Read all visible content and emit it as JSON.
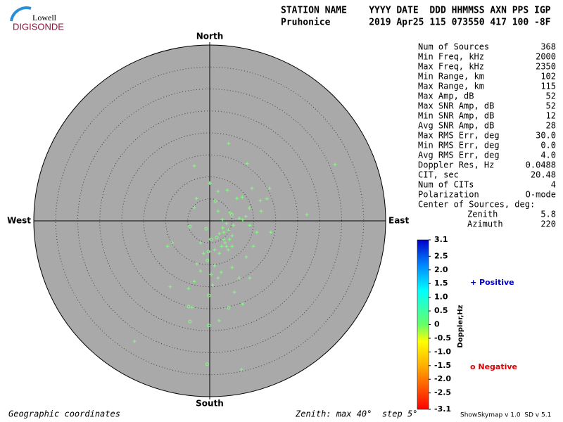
{
  "header": {
    "logo_top": "Lowell",
    "logo_bottom": "DIGISONDE",
    "columns_line": "STATION NAME    YYYY DATE  DDD HHMMSS AXN PPS IGP",
    "values_line": "Pruhonice       2019 Apr25 115 073550 417 100 -8F"
  },
  "stats": [
    [
      "Num of Sources",
      "368"
    ],
    [
      "Min Freq, kHz",
      "2000"
    ],
    [
      "Max Freq, kHz",
      "2350"
    ],
    [
      "Min Range, km",
      "102"
    ],
    [
      "Max Range, km",
      "115"
    ],
    [
      "Max Amp, dB",
      "52"
    ],
    [
      "Max SNR Amp, dB",
      "52"
    ],
    [
      "Min SNR Amp, dB",
      "12"
    ],
    [
      "Avg SNR Amp, dB",
      "28"
    ],
    [
      "Max RMS Err, deg",
      "30.0"
    ],
    [
      "Min RMS Err, deg",
      "0.0"
    ],
    [
      "Avg RMS Err, deg",
      "4.0"
    ],
    [
      "Doppler Res, Hz",
      "0.0488"
    ],
    [
      "CIT, sec",
      "20.48"
    ],
    [
      "Num of CITs",
      "4"
    ],
    [
      "Polarization",
      "O-mode"
    ]
  ],
  "center": {
    "title": "Center of Sources, deg:",
    "rows": [
      [
        "Zenith",
        "5.8"
      ],
      [
        "Azimuth",
        "220"
      ]
    ]
  },
  "chart_data": {
    "type": "polar-scatter",
    "direction_labels": {
      "north": "North",
      "south": "South",
      "west": "West",
      "east": "East"
    },
    "rlim": [
      0,
      40
    ],
    "rticks": [
      5,
      10,
      15,
      20,
      25,
      30,
      35,
      40
    ],
    "point_color": "#80ff80",
    "disk_color": "#a9a9a9",
    "series": [
      {
        "name": "+ Positive",
        "marker": "plus",
        "color": "#0000cc",
        "x": [
          4.3,
          28.5,
          -3.5,
          8.5,
          0,
          9.6,
          13.6,
          13.0,
          11.5,
          7.4,
          6.2,
          4.0,
          1.9,
          -3.0,
          -3.5,
          22.1,
          11.7,
          9.0,
          8.2,
          7.5,
          3.8,
          3.0,
          2.2,
          4.3,
          5.1,
          3.5,
          2.7,
          1.1,
          -2.1,
          -1.4,
          -2.9,
          -2.1,
          0.3,
          1.9,
          -3.5,
          -4.8,
          0.6,
          2.6,
          5.1,
          8.3,
          9.9,
          10.7,
          13.9,
          6.7,
          9.1,
          -9.0,
          -9.6,
          -8.5,
          -4.0,
          5.6,
          7.5,
          2.1,
          -17.1,
          7.2,
          3.2,
          3.8,
          2.9,
          4.6,
          5.4,
          3.2,
          6.7,
          9.1,
          1.9,
          1.1,
          4.5,
          5.1,
          2.2,
          4.2
        ],
        "y": [
          17.6,
          12.8,
          12.5,
          13.0,
          8.6,
          7.4,
          7.4,
          5.0,
          4.6,
          5.4,
          5.1,
          7.0,
          6.7,
          5.1,
          3.0,
          1.4,
          2.2,
          2.9,
          1.0,
          0.2,
          -0.6,
          -1.6,
          -2.9,
          -2.1,
          -3.4,
          -5.0,
          -5.8,
          -6.6,
          -5.0,
          -7.4,
          -9.8,
          -11.4,
          -12.2,
          -13.0,
          -13.8,
          -15.4,
          -14.6,
          -11.7,
          -10.6,
          -8.2,
          -5.8,
          -2.6,
          -2.6,
          -13.0,
          -13.0,
          -15.0,
          -5.8,
          -5.0,
          -19.7,
          -16.2,
          -18.9,
          -22.7,
          -27.4,
          -33.8,
          -4.2,
          -5.8,
          0.3,
          1.9,
          -1.0,
          -2.6,
          0.6,
          -1.0,
          2.2,
          -10.2,
          -4.2,
          -5.8,
          -7.4,
          -6.6
        ]
      },
      {
        "name": "o Negative",
        "marker": "circle",
        "color": "#dd0000",
        "x": [
          1.3,
          5.0,
          0.3,
          -0.8,
          -4.5,
          -0.5,
          -0.2,
          -4.8,
          4.3,
          -4.5,
          -0.6,
          1.6,
          -0.3,
          -0.2
        ],
        "y": [
          4.5,
          1.4,
          -4.2,
          -1.8,
          -1.3,
          -9.0,
          -17.0,
          -19.5,
          -19.8,
          -22.9,
          -32.6,
          -3.8,
          -7.0,
          -23.8
        ]
      }
    ],
    "colorbar": {
      "label": "Doppler,Hz",
      "lim": [
        -3.1,
        3.1
      ],
      "ticks": [
        3.1,
        2.5,
        {
          "value": 2,
          "label": "2.0"
        },
        1.5,
        {
          "value": 1,
          "label": "1.0"
        },
        0.5,
        0,
        -0.5,
        {
          "value": -1,
          "label": "-1.0"
        },
        -1.5,
        {
          "value": -2,
          "label": "-2.0"
        },
        -2.5,
        -3.1
      ]
    }
  },
  "footer": {
    "left": "Geographic coordinates",
    "middle": "Zenith: max 40°  step 5°",
    "right": "ShowSkymap v 1.0  SD v 5.1"
  }
}
